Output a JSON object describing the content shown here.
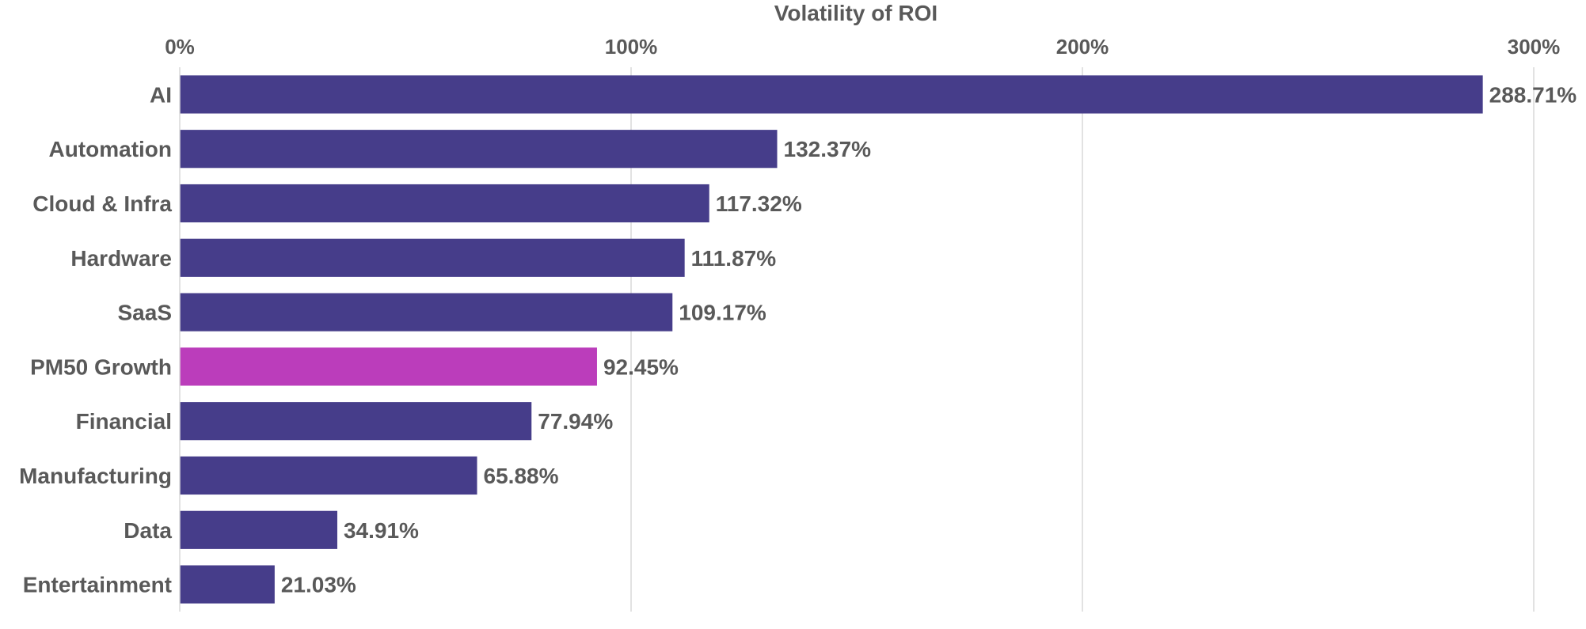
{
  "chart_data": {
    "type": "bar",
    "orientation": "horizontal",
    "title": "",
    "xlabel": "Volatility of ROI",
    "xlabel_position": "top",
    "ylabel": "",
    "xlim": [
      0,
      300
    ],
    "x_ticks": [
      0,
      100,
      200,
      300
    ],
    "x_tick_labels": [
      "0%",
      "100%",
      "200%",
      "300%"
    ],
    "grid": true,
    "legend": "none",
    "categories": [
      "AI",
      "Automation",
      "Cloud & Infra",
      "Hardware",
      "SaaS",
      "PM50 Growth",
      "Financial",
      "Manufacturing",
      "Data",
      "Entertainment"
    ],
    "values": [
      288.71,
      132.37,
      117.32,
      111.87,
      109.17,
      92.45,
      77.94,
      65.88,
      34.91,
      21.03
    ],
    "value_labels": [
      "288.71%",
      "132.37%",
      "117.32%",
      "111.87%",
      "109.17%",
      "92.45%",
      "77.94%",
      "65.88%",
      "34.91%",
      "21.03%"
    ],
    "highlight_category": "PM50 Growth",
    "colors": {
      "bar": "#463d8a",
      "highlight": "#bb3dbb",
      "text": "#595959",
      "grid": "#d9d9d9"
    }
  }
}
